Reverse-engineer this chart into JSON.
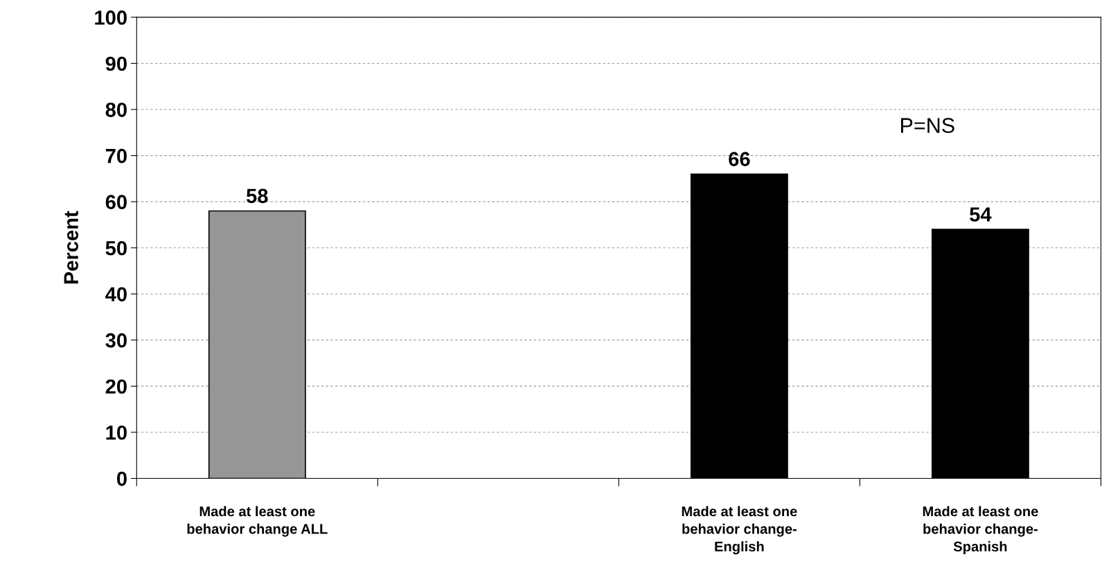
{
  "chart_data": {
    "type": "bar",
    "categories": [
      "Made at least one behavior change ALL",
      null,
      "Made at least one behavior change-English",
      "Made at least one behavior change-Spanish"
    ],
    "values": [
      58,
      null,
      66,
      54
    ],
    "colors": [
      "#969696",
      "#000000",
      "#000000",
      "#000000"
    ],
    "ylabel": "Percent",
    "ylim": [
      0,
      100
    ],
    "yticks": [
      0,
      10,
      20,
      30,
      40,
      50,
      60,
      70,
      80,
      90,
      100
    ],
    "grid": "y",
    "data_labels": true,
    "annotations": [
      "P=NS"
    ]
  }
}
